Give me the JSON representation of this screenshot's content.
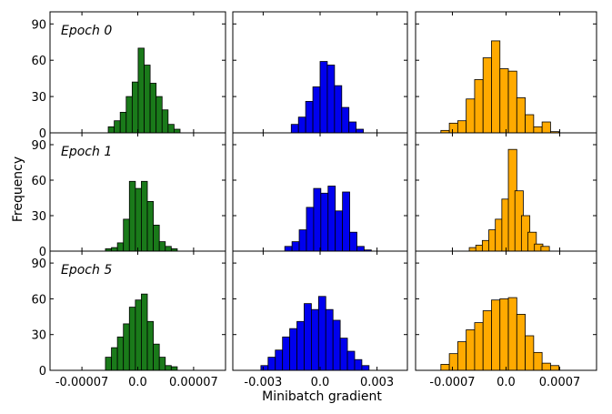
{
  "chart_data": {
    "type": "bar",
    "subtype": "histogram-grid",
    "xlabel": "Minibatch gradient",
    "ylabel": "Frequency",
    "ylim": [
      0,
      100
    ],
    "yticks": [
      0,
      30,
      60,
      90
    ],
    "row_labels": [
      "Epoch 0",
      "Epoch 1",
      "Epoch 5"
    ],
    "columns": [
      {
        "color": "#1a7a1a",
        "xlim": [
          -0.00011,
          0.00011
        ],
        "xticks": [
          -7e-05,
          0.0,
          7e-05
        ],
        "xtick_labels": [
          "-0.00007",
          "0.0",
          "0.00007"
        ],
        "bin_width": 7.5e-06
      },
      {
        "color": "#0000ee",
        "xlim": [
          -0.0046,
          0.0046
        ],
        "xticks": [
          -0.003,
          0.0,
          0.003
        ],
        "xtick_labels": [
          "-0.003",
          "0.0",
          "0.003"
        ],
        "bin_width": 0.00038
      },
      {
        "color": "#ffaa00",
        "xlim": [
          -0.00118,
          0.00118
        ],
        "xticks": [
          -0.0007,
          0.0,
          0.0007
        ],
        "xtick_labels": [
          "-0.0007",
          "0.0",
          "0.0007"
        ],
        "bin_width": 0.00011
      }
    ],
    "panels": [
      {
        "row": 0,
        "col": 0,
        "series": "Epoch 0 / green",
        "bins": [
          {
            "x": -3.7e-05,
            "v": 5
          },
          {
            "x": -2.95e-05,
            "v": 10
          },
          {
            "x": -2.2e-05,
            "v": 17
          },
          {
            "x": -1.45e-05,
            "v": 30
          },
          {
            "x": -7e-06,
            "v": 42
          },
          {
            "x": 5e-07,
            "v": 70
          },
          {
            "x": 8e-06,
            "v": 56
          },
          {
            "x": 1.55e-05,
            "v": 41
          },
          {
            "x": 2.3e-05,
            "v": 30
          },
          {
            "x": 3.05e-05,
            "v": 19
          },
          {
            "x": 3.8e-05,
            "v": 7
          },
          {
            "x": 4.55e-05,
            "v": 3
          }
        ]
      },
      {
        "row": 0,
        "col": 1,
        "series": "Epoch 0 / blue",
        "bins": [
          {
            "x": -0.00152,
            "v": 7
          },
          {
            "x": -0.00114,
            "v": 13
          },
          {
            "x": -0.00076,
            "v": 26
          },
          {
            "x": -0.00038,
            "v": 38
          },
          {
            "x": 0.0,
            "v": 59
          },
          {
            "x": 0.00038,
            "v": 56
          },
          {
            "x": 0.00076,
            "v": 39
          },
          {
            "x": 0.00114,
            "v": 21
          },
          {
            "x": 0.00152,
            "v": 9
          },
          {
            "x": 0.0019,
            "v": 3
          }
        ]
      },
      {
        "row": 0,
        "col": 2,
        "series": "Epoch 0 / orange",
        "bins": [
          {
            "x": -0.00085,
            "v": 2
          },
          {
            "x": -0.00074,
            "v": 8
          },
          {
            "x": -0.00063,
            "v": 10
          },
          {
            "x": -0.00052,
            "v": 28
          },
          {
            "x": -0.00041,
            "v": 44
          },
          {
            "x": -0.0003,
            "v": 62
          },
          {
            "x": -0.00019,
            "v": 76
          },
          {
            "x": -8e-05,
            "v": 53
          },
          {
            "x": 3e-05,
            "v": 51
          },
          {
            "x": 0.00014,
            "v": 29
          },
          {
            "x": 0.00025,
            "v": 15
          },
          {
            "x": 0.00036,
            "v": 5
          },
          {
            "x": 0.00047,
            "v": 9
          },
          {
            "x": 0.00058,
            "v": 1
          }
        ]
      },
      {
        "row": 1,
        "col": 0,
        "series": "Epoch 1 / green",
        "bins": [
          {
            "x": -4.05e-05,
            "v": 2
          },
          {
            "x": -3.3e-05,
            "v": 3
          },
          {
            "x": -2.55e-05,
            "v": 7
          },
          {
            "x": -1.8e-05,
            "v": 27
          },
          {
            "x": -1.05e-05,
            "v": 59
          },
          {
            "x": -3e-06,
            "v": 53
          },
          {
            "x": 4.5e-06,
            "v": 59
          },
          {
            "x": 1.2e-05,
            "v": 42
          },
          {
            "x": 1.95e-05,
            "v": 22
          },
          {
            "x": 2.7e-05,
            "v": 8
          },
          {
            "x": 3.45e-05,
            "v": 4
          },
          {
            "x": 4.2e-05,
            "v": 2
          }
        ]
      },
      {
        "row": 1,
        "col": 1,
        "series": "Epoch 1 / blue",
        "bins": [
          {
            "x": -0.00186,
            "v": 4
          },
          {
            "x": -0.00148,
            "v": 8
          },
          {
            "x": -0.0011,
            "v": 18
          },
          {
            "x": -0.00072,
            "v": 37
          },
          {
            "x": -0.00034,
            "v": 53
          },
          {
            "x": 4e-05,
            "v": 49
          },
          {
            "x": 0.00042,
            "v": 55
          },
          {
            "x": 0.0008,
            "v": 34
          },
          {
            "x": 0.00118,
            "v": 50
          },
          {
            "x": 0.00156,
            "v": 16
          },
          {
            "x": 0.00194,
            "v": 4
          },
          {
            "x": 0.00232,
            "v": 1
          }
        ]
      },
      {
        "row": 1,
        "col": 2,
        "series": "Epoch 1 / orange",
        "bins": [
          {
            "x": -0.00048,
            "v": 3
          },
          {
            "x": -0.000395,
            "v": 5
          },
          {
            "x": -0.00031,
            "v": 9
          },
          {
            "x": -0.000225,
            "v": 18
          },
          {
            "x": -0.00014,
            "v": 27
          },
          {
            "x": -5.5e-05,
            "v": 44
          },
          {
            "x": 3e-05,
            "v": 86
          },
          {
            "x": 0.000115,
            "v": 51
          },
          {
            "x": 0.0002,
            "v": 30
          },
          {
            "x": 0.000285,
            "v": 16
          },
          {
            "x": 0.00037,
            "v": 6
          },
          {
            "x": 0.000455,
            "v": 4
          }
        ]
      },
      {
        "row": 2,
        "col": 0,
        "series": "Epoch 5 / green",
        "bins": [
          {
            "x": -4.05e-05,
            "v": 11
          },
          {
            "x": -3.3e-05,
            "v": 19
          },
          {
            "x": -2.55e-05,
            "v": 28
          },
          {
            "x": -1.8e-05,
            "v": 39
          },
          {
            "x": -1.05e-05,
            "v": 53
          },
          {
            "x": -3e-06,
            "v": 59
          },
          {
            "x": 4.5e-06,
            "v": 64
          },
          {
            "x": 1.2e-05,
            "v": 41
          },
          {
            "x": 1.95e-05,
            "v": 22
          },
          {
            "x": 2.7e-05,
            "v": 11
          },
          {
            "x": 3.45e-05,
            "v": 4
          },
          {
            "x": 4.2e-05,
            "v": 3
          }
        ]
      },
      {
        "row": 2,
        "col": 1,
        "series": "Epoch 5 / blue",
        "bins": [
          {
            "x": -0.00312,
            "v": 4
          },
          {
            "x": -0.00274,
            "v": 11
          },
          {
            "x": -0.00236,
            "v": 17
          },
          {
            "x": -0.00198,
            "v": 28
          },
          {
            "x": -0.0016,
            "v": 35
          },
          {
            "x": -0.00122,
            "v": 41
          },
          {
            "x": -0.00084,
            "v": 56
          },
          {
            "x": -0.00046,
            "v": 51
          },
          {
            "x": -8e-05,
            "v": 62
          },
          {
            "x": 0.0003,
            "v": 51
          },
          {
            "x": 0.00068,
            "v": 42
          },
          {
            "x": 0.00106,
            "v": 27
          },
          {
            "x": 0.00144,
            "v": 16
          },
          {
            "x": 0.00182,
            "v": 9
          },
          {
            "x": 0.0022,
            "v": 4
          }
        ]
      },
      {
        "row": 2,
        "col": 2,
        "series": "Epoch 5 / orange",
        "bins": [
          {
            "x": -0.00085,
            "v": 5
          },
          {
            "x": -0.00074,
            "v": 14
          },
          {
            "x": -0.00063,
            "v": 24
          },
          {
            "x": -0.00052,
            "v": 34
          },
          {
            "x": -0.00041,
            "v": 40
          },
          {
            "x": -0.0003,
            "v": 50
          },
          {
            "x": -0.00019,
            "v": 59
          },
          {
            "x": -8e-05,
            "v": 60
          },
          {
            "x": 3e-05,
            "v": 61
          },
          {
            "x": 0.00014,
            "v": 47
          },
          {
            "x": 0.00025,
            "v": 29
          },
          {
            "x": 0.00036,
            "v": 15
          },
          {
            "x": 0.00047,
            "v": 6
          },
          {
            "x": 0.00058,
            "v": 4
          }
        ]
      }
    ]
  }
}
